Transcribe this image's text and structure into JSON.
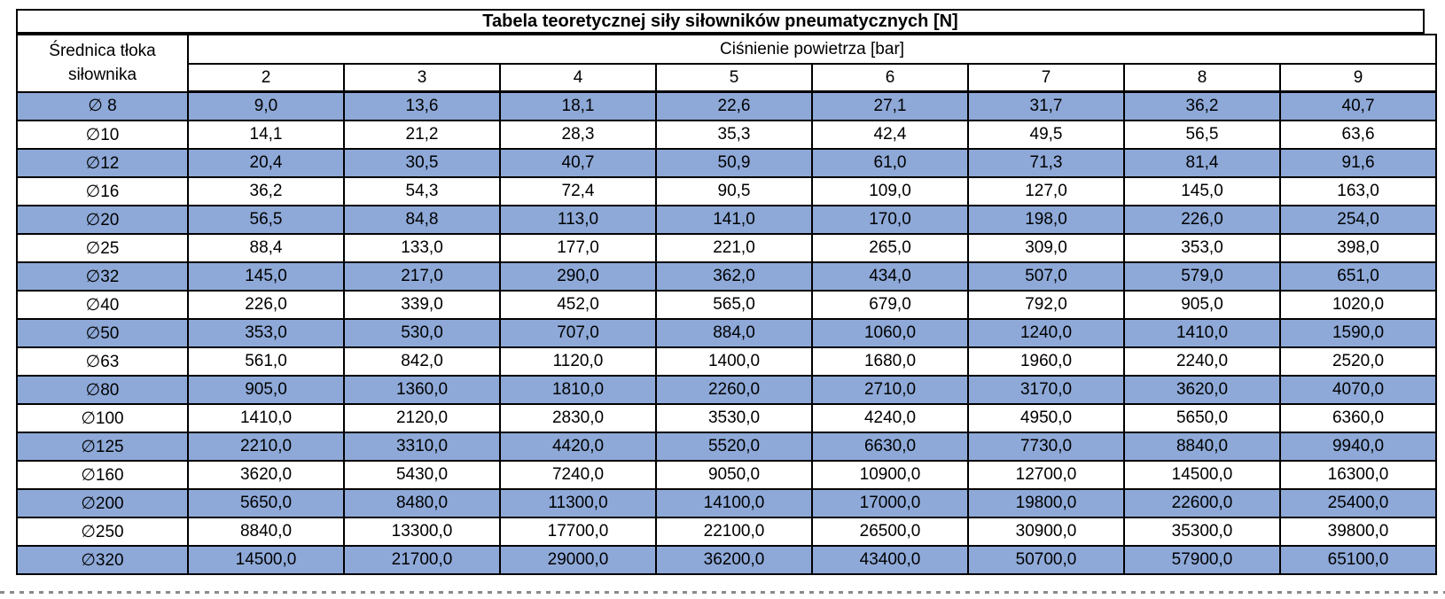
{
  "table": {
    "title": "Tabela teoretycznej siły siłowników pneumatycznych [N]",
    "row_header": [
      "Średnica tłoka",
      "siłownika"
    ],
    "col_group_header": "Ciśnienie powietrza [bar]",
    "pressures": [
      "2",
      "3",
      "4",
      "5",
      "6",
      "7",
      "8",
      "9"
    ],
    "rows": [
      {
        "diameter": "∅ 8",
        "values": [
          "9,0",
          "13,6",
          "18,1",
          "22,6",
          "27,1",
          "31,7",
          "36,2",
          "40,7"
        ]
      },
      {
        "diameter": "∅10",
        "values": [
          "14,1",
          "21,2",
          "28,3",
          "35,3",
          "42,4",
          "49,5",
          "56,5",
          "63,6"
        ]
      },
      {
        "diameter": "∅12",
        "values": [
          "20,4",
          "30,5",
          "40,7",
          "50,9",
          "61,0",
          "71,3",
          "81,4",
          "91,6"
        ]
      },
      {
        "diameter": "∅16",
        "values": [
          "36,2",
          "54,3",
          "72,4",
          "90,5",
          "109,0",
          "127,0",
          "145,0",
          "163,0"
        ]
      },
      {
        "diameter": "∅20",
        "values": [
          "56,5",
          "84,8",
          "113,0",
          "141,0",
          "170,0",
          "198,0",
          "226,0",
          "254,0"
        ]
      },
      {
        "diameter": "∅25",
        "values": [
          "88,4",
          "133,0",
          "177,0",
          "221,0",
          "265,0",
          "309,0",
          "353,0",
          "398,0"
        ]
      },
      {
        "diameter": "∅32",
        "values": [
          "145,0",
          "217,0",
          "290,0",
          "362,0",
          "434,0",
          "507,0",
          "579,0",
          "651,0"
        ]
      },
      {
        "diameter": "∅40",
        "values": [
          "226,0",
          "339,0",
          "452,0",
          "565,0",
          "679,0",
          "792,0",
          "905,0",
          "1020,0"
        ]
      },
      {
        "diameter": "∅50",
        "values": [
          "353,0",
          "530,0",
          "707,0",
          "884,0",
          "1060,0",
          "1240,0",
          "1410,0",
          "1590,0"
        ]
      },
      {
        "diameter": "∅63",
        "values": [
          "561,0",
          "842,0",
          "1120,0",
          "1400,0",
          "1680,0",
          "1960,0",
          "2240,0",
          "2520,0"
        ]
      },
      {
        "diameter": "∅80",
        "values": [
          "905,0",
          "1360,0",
          "1810,0",
          "2260,0",
          "2710,0",
          "3170,0",
          "3620,0",
          "4070,0"
        ]
      },
      {
        "diameter": "∅100",
        "values": [
          "1410,0",
          "2120,0",
          "2830,0",
          "3530,0",
          "4240,0",
          "4950,0",
          "5650,0",
          "6360,0"
        ]
      },
      {
        "diameter": "∅125",
        "values": [
          "2210,0",
          "3310,0",
          "4420,0",
          "5520,0",
          "6630,0",
          "7730,0",
          "8840,0",
          "9940,0"
        ]
      },
      {
        "diameter": "∅160",
        "values": [
          "3620,0",
          "5430,0",
          "7240,0",
          "9050,0",
          "10900,0",
          "12700,0",
          "14500,0",
          "16300,0"
        ]
      },
      {
        "diameter": "∅200",
        "values": [
          "5650,0",
          "8480,0",
          "11300,0",
          "14100,0",
          "17000,0",
          "19800,0",
          "22600,0",
          "25400,0"
        ]
      },
      {
        "diameter": "∅250",
        "values": [
          "8840,0",
          "13300,0",
          "17700,0",
          "22100,0",
          "26500,0",
          "30900,0",
          "35300,0",
          "39800,0"
        ]
      },
      {
        "diameter": "∅320",
        "values": [
          "14500,0",
          "21700,0",
          "29000,0",
          "36200,0",
          "43400,0",
          "50700,0",
          "57900,0",
          "65100,0"
        ]
      }
    ]
  },
  "colors": {
    "row_highlight": "#8EA9D8",
    "border": "#000000",
    "background": "#FFFFFF"
  }
}
